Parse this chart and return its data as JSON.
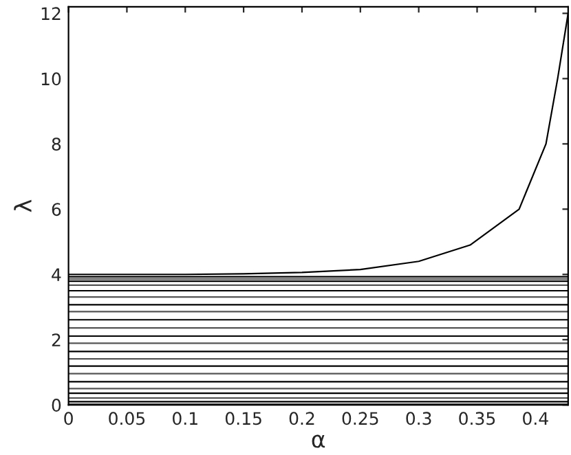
{
  "chart_data": {
    "type": "line",
    "xlabel": "α",
    "ylabel": "λ",
    "xlim": [
      0,
      0.428
    ],
    "ylim": [
      0,
      12.2
    ],
    "xticks": [
      0,
      0.05,
      0.1,
      0.15,
      0.2,
      0.25,
      0.3,
      0.35,
      0.4
    ],
    "yticks": [
      0,
      2,
      4,
      6,
      8,
      10,
      12
    ],
    "marker": "none",
    "line_style": "solid",
    "series": [
      {
        "color": "#000000",
        "x": [
          0,
          0.1,
          0.15,
          0.2,
          0.25,
          0.3,
          0.344,
          0.386,
          0.409,
          0.419,
          0.428
        ],
        "values": [
          4.0,
          4.0,
          4.02,
          4.06,
          4.15,
          4.4,
          4.9,
          6.0,
          8.0,
          10.0,
          12.0
        ]
      },
      {
        "color": "#000000",
        "x": [
          0,
          0.428
        ],
        "values": [
          3.93,
          3.93
        ]
      },
      {
        "color": "#555555",
        "x": [
          0,
          0.428
        ],
        "values": [
          3.86,
          3.86
        ]
      },
      {
        "color": "#000000",
        "x": [
          0,
          0.428
        ],
        "values": [
          3.79,
          3.79
        ]
      },
      {
        "color": "#555555",
        "x": [
          0,
          0.428
        ],
        "values": [
          3.67,
          3.67
        ]
      },
      {
        "color": "#000000",
        "x": [
          0,
          0.428
        ],
        "values": [
          3.5,
          3.5
        ]
      },
      {
        "color": "#555555",
        "x": [
          0,
          0.428
        ],
        "values": [
          3.31,
          3.31
        ]
      },
      {
        "color": "#000000",
        "x": [
          0,
          0.428
        ],
        "values": [
          3.07,
          3.07
        ]
      },
      {
        "color": "#555555",
        "x": [
          0,
          0.428
        ],
        "values": [
          2.86,
          2.86
        ]
      },
      {
        "color": "#000000",
        "x": [
          0,
          0.428
        ],
        "values": [
          2.61,
          2.61
        ]
      },
      {
        "color": "#555555",
        "x": [
          0,
          0.428
        ],
        "values": [
          2.36,
          2.36
        ]
      },
      {
        "color": "#000000",
        "x": [
          0,
          0.428
        ],
        "values": [
          2.11,
          2.11
        ]
      },
      {
        "color": "#555555",
        "x": [
          0,
          0.428
        ],
        "values": [
          1.89,
          1.89
        ]
      },
      {
        "color": "#000000",
        "x": [
          0,
          0.428
        ],
        "values": [
          1.64,
          1.64
        ]
      },
      {
        "color": "#555555",
        "x": [
          0,
          0.428
        ],
        "values": [
          1.41,
          1.41
        ]
      },
      {
        "color": "#000000",
        "x": [
          0,
          0.428
        ],
        "values": [
          1.19,
          1.19
        ]
      },
      {
        "color": "#555555",
        "x": [
          0,
          0.428
        ],
        "values": [
          0.96,
          0.96
        ]
      },
      {
        "color": "#000000",
        "x": [
          0,
          0.428
        ],
        "values": [
          0.71,
          0.71
        ]
      },
      {
        "color": "#555555",
        "x": [
          0,
          0.428
        ],
        "values": [
          0.5,
          0.5
        ]
      },
      {
        "color": "#000000",
        "x": [
          0,
          0.428
        ],
        "values": [
          0.36,
          0.36
        ]
      },
      {
        "color": "#555555",
        "x": [
          0,
          0.428
        ],
        "values": [
          0.21,
          0.21
        ]
      },
      {
        "color": "#000000",
        "x": [
          0,
          0.428
        ],
        "values": [
          0.1,
          0.1
        ]
      },
      {
        "color": "#555555",
        "x": [
          0,
          0.428
        ],
        "values": [
          0.03,
          0.03
        ]
      }
    ]
  }
}
